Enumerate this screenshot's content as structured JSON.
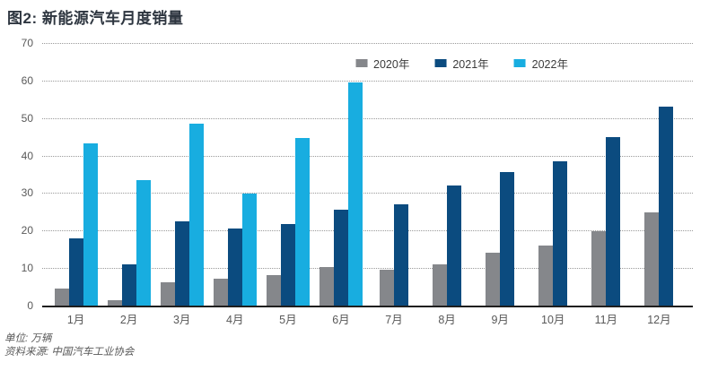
{
  "title": "图2: 新能源汽车月度销量",
  "footer": {
    "unit": "单位: 万辆",
    "source": "资料来源: 中国汽车工业协会"
  },
  "chart_data": {
    "type": "bar",
    "title": "图2: 新能源汽车月度销量",
    "unit": "万辆",
    "categories": [
      "1月",
      "2月",
      "3月",
      "4月",
      "5月",
      "6月",
      "7月",
      "8月",
      "9月",
      "10月",
      "11月",
      "12月"
    ],
    "series": [
      {
        "name": "2020年",
        "color": "#85878B",
        "values": [
          4.5,
          1.4,
          6.2,
          7.2,
          8.2,
          10.3,
          9.5,
          11.0,
          14.0,
          16.0,
          19.8,
          24.9
        ]
      },
      {
        "name": "2021年",
        "color": "#0B4B7F",
        "values": [
          18.0,
          11.0,
          22.5,
          20.6,
          21.8,
          25.6,
          27.1,
          32.1,
          35.7,
          38.4,
          45.0,
          53.0
        ]
      },
      {
        "name": "2022年",
        "color": "#18ADE0",
        "values": [
          43.2,
          33.4,
          48.4,
          29.9,
          44.7,
          59.6,
          null,
          null,
          null,
          null,
          null,
          null
        ]
      }
    ],
    "ylim": [
      0,
      70
    ],
    "yticks": [
      0,
      10,
      20,
      30,
      40,
      50,
      60,
      70
    ],
    "grid": true,
    "legend_position": "top-center",
    "xlabel": "",
    "ylabel": ""
  }
}
